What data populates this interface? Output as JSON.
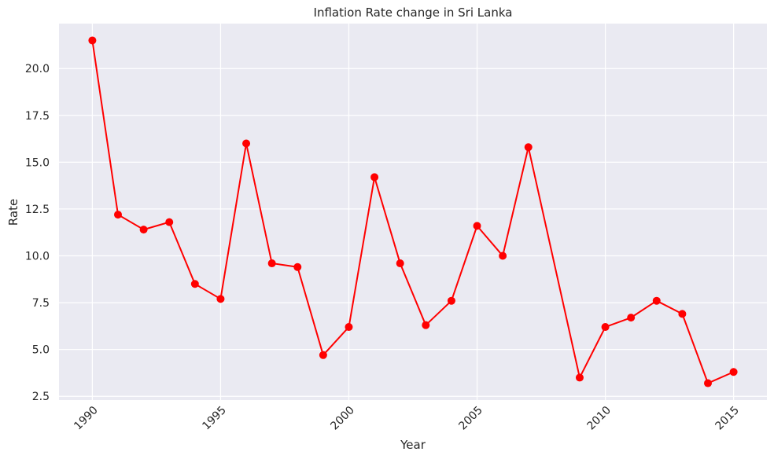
{
  "chart_data": {
    "type": "line",
    "title": "Inflation Rate change in Sri Lanka",
    "xlabel": "Year",
    "ylabel": "Rate",
    "xlim": [
      1988.7,
      2016.3
    ],
    "ylim": [
      2.3,
      22.4
    ],
    "x_ticks": [
      1990,
      1995,
      2000,
      2005,
      2010,
      2015
    ],
    "y_ticks": [
      2.5,
      5.0,
      7.5,
      10.0,
      12.5,
      15.0,
      17.5,
      20.0
    ],
    "y_tick_labels": [
      "2.5",
      "5.0",
      "7.5",
      "10.0",
      "12.5",
      "15.0",
      "17.5",
      "20.0"
    ],
    "grid": true,
    "series": [
      {
        "name": "Rate",
        "color": "#ff0000",
        "marker": "circle",
        "x": [
          1990,
          1991,
          1992,
          1993,
          1994,
          1995,
          1996,
          1997,
          1998,
          1999,
          2000,
          2001,
          2002,
          2003,
          2004,
          2005,
          2006,
          2007,
          2009,
          2010,
          2011,
          2012,
          2013,
          2014,
          2015
        ],
        "values": [
          21.5,
          12.2,
          11.4,
          11.8,
          8.5,
          7.7,
          16.0,
          9.6,
          9.4,
          4.7,
          6.2,
          14.2,
          9.6,
          6.3,
          7.6,
          11.6,
          10.0,
          15.8,
          3.5,
          6.2,
          6.7,
          7.6,
          6.9,
          3.2,
          3.8
        ]
      }
    ]
  }
}
